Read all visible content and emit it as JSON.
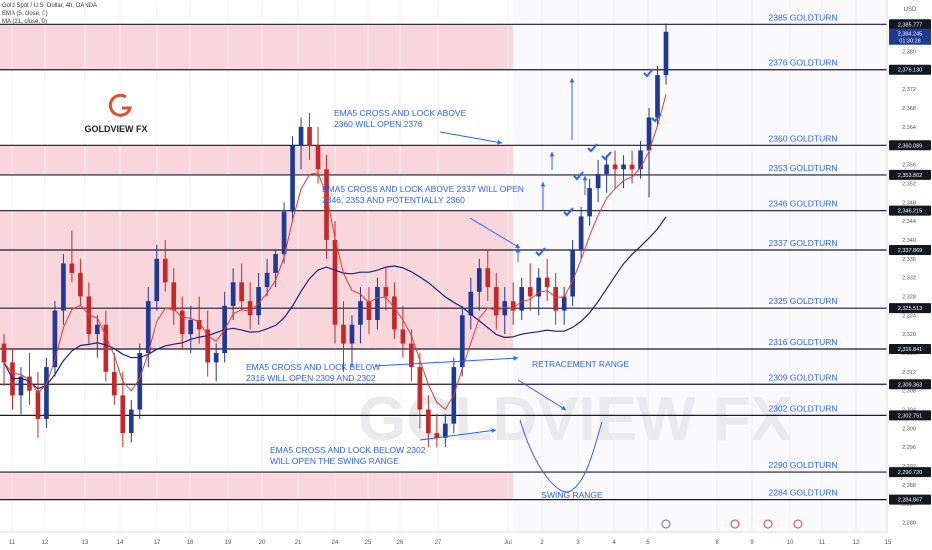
{
  "header": {
    "symbol": "Gold Spot / U.S. Dollar, 4h, OANDA",
    "ema_label": "EMA (5, close, 0)",
    "ma_label": "MA (21, close, 0)",
    "currency": "USD"
  },
  "logo": {
    "text": "GOLDVIEW FX",
    "watermark": "GOLDVIEW FX"
  },
  "colors": {
    "up": "#1f3a93",
    "down": "#c62828",
    "zone": "#f9d6dc",
    "ema": "#e53935",
    "ma": "#1a237e",
    "annotation": "#2962ff",
    "logo": "#e0502e",
    "guide": "#9aa5b8"
  },
  "chart_data": {
    "type": "candlestick",
    "ylim": [
      2278,
      2388
    ],
    "y_ticks": [
      2280,
      2284,
      2288,
      2292,
      2296,
      2300,
      2304,
      2308,
      2312,
      2316,
      2320,
      2324,
      2328,
      2332,
      2336,
      2340,
      2344,
      2348,
      2352,
      2356,
      2360,
      2364,
      2368,
      2372,
      2376,
      2380
    ],
    "x_ticks": [
      "11",
      "12",
      "13",
      "14",
      "17",
      "18",
      "19",
      "20",
      "21",
      "24",
      "25",
      "26",
      "27",
      "Jul",
      "2",
      "3",
      "4",
      "5",
      "8",
      "9",
      "10",
      "11",
      "12",
      "15",
      "16"
    ],
    "price_badges": {
      "last": "2,385.777",
      "current": "2,384.245",
      "countdown": "01:30:28"
    },
    "levels": [
      {
        "label": "2385 GOLDTURN",
        "tag": "2,385.777",
        "value": 2385.777
      },
      {
        "label": "2376 GOLDTURN",
        "tag": "2,376.130",
        "value": 2376.13
      },
      {
        "label": "2360 GOLDTURN",
        "tag": "2,360.089",
        "value": 2360.089
      },
      {
        "label": "2353 GOLDTURN",
        "tag": "2,353.802",
        "value": 2353.802
      },
      {
        "label": "2346 GOLDTURN",
        "tag": "2,346.215",
        "value": 2346.215
      },
      {
        "label": "2337 GOLDTURN",
        "tag": "2,337.869",
        "value": 2337.869
      },
      {
        "label": "2325 GOLDTURN",
        "tag": "2,325.513",
        "value": 2325.513
      },
      {
        "label": "2316 GOLDTURN",
        "tag": "2,316.841",
        "value": 2316.841
      },
      {
        "label": "2309 GOLDTURN",
        "tag": "2,309.363",
        "value": 2309.363
      },
      {
        "label": "2302 GOLDTURN",
        "tag": "2,302.751",
        "value": 2302.751
      },
      {
        "label": "2290 GOLDTURN",
        "tag": "2,290.720",
        "value": 2290.72
      },
      {
        "label": "2284 GOLDTURN",
        "tag": "2,284.867",
        "value": 2284.867
      }
    ],
    "zones": [
      [
        2376.13,
        2385.777
      ],
      [
        2353.802,
        2360.089
      ],
      [
        2316.841,
        2346.215
      ],
      [
        2284.867,
        2290.72
      ]
    ],
    "annotations": [
      {
        "lines": [
          "EMA5 CROSS AND LOCK ABOVE",
          "2360 WILL OPEN 2376"
        ]
      },
      {
        "lines": [
          "EMA5 CROSS AND LOCK ABOVE 2337 WILL OPEN",
          "2346, 2353 AND POTENTIALLY 2360"
        ]
      },
      {
        "lines": [
          "EMA5 CROSS AND LOCK BELOW",
          "2316 WILL OPEN 2309 AND 2302"
        ]
      },
      {
        "lines": [
          "EMA5 CROSS AND LOCK BELOW 2302",
          "WILL OPEN THE SWING RANGE"
        ]
      },
      {
        "lines": [
          "RETRACEMENT RANGE"
        ]
      },
      {
        "lines": [
          "SWING RANGE"
        ]
      }
    ],
    "candles": [
      [
        2318,
        2320,
        2309,
        2314
      ],
      [
        2314,
        2317,
        2304,
        2307
      ],
      [
        2307,
        2313,
        2303,
        2311
      ],
      [
        2311,
        2316,
        2305,
        2308
      ],
      [
        2308,
        2312,
        2298,
        2302
      ],
      [
        2302,
        2315,
        2300,
        2313
      ],
      [
        2313,
        2327,
        2311,
        2325
      ],
      [
        2325,
        2337,
        2322,
        2335
      ],
      [
        2335,
        2342,
        2331,
        2333
      ],
      [
        2333,
        2336,
        2326,
        2328
      ],
      [
        2328,
        2331,
        2318,
        2320
      ],
      [
        2320,
        2324,
        2315,
        2322
      ],
      [
        2322,
        2325,
        2310,
        2312
      ],
      [
        2312,
        2316,
        2305,
        2307
      ],
      [
        2307,
        2312,
        2296,
        2299
      ],
      [
        2299,
        2306,
        2297,
        2304
      ],
      [
        2304,
        2318,
        2302,
        2316
      ],
      [
        2316,
        2330,
        2313,
        2327
      ],
      [
        2327,
        2339,
        2325,
        2336
      ],
      [
        2336,
        2340,
        2329,
        2331
      ],
      [
        2331,
        2334,
        2322,
        2325
      ],
      [
        2325,
        2328,
        2317,
        2320
      ],
      [
        2320,
        2326,
        2316,
        2323
      ],
      [
        2323,
        2328,
        2318,
        2321
      ],
      [
        2321,
        2325,
        2311,
        2314
      ],
      [
        2314,
        2318,
        2310,
        2316
      ],
      [
        2316,
        2329,
        2314,
        2326
      ],
      [
        2326,
        2334,
        2323,
        2331
      ],
      [
        2331,
        2335,
        2325,
        2327
      ],
      [
        2327,
        2331,
        2321,
        2324
      ],
      [
        2324,
        2333,
        2322,
        2330
      ],
      [
        2330,
        2336,
        2328,
        2333
      ],
      [
        2333,
        2338,
        2330,
        2337
      ],
      [
        2337,
        2348,
        2335,
        2346
      ],
      [
        2346,
        2362,
        2344,
        2360
      ],
      [
        2360,
        2366,
        2355,
        2364
      ],
      [
        2364,
        2367,
        2357,
        2360
      ],
      [
        2360,
        2364,
        2352,
        2355
      ],
      [
        2355,
        2358,
        2336,
        2340
      ],
      [
        2340,
        2344,
        2318,
        2322
      ],
      [
        2322,
        2327,
        2312,
        2318
      ],
      [
        2318,
        2324,
        2313,
        2322
      ],
      [
        2322,
        2330,
        2318,
        2327
      ],
      [
        2327,
        2330,
        2320,
        2323
      ],
      [
        2323,
        2332,
        2321,
        2330
      ],
      [
        2330,
        2334,
        2325,
        2328
      ],
      [
        2328,
        2331,
        2319,
        2321
      ],
      [
        2321,
        2326,
        2315,
        2318
      ],
      [
        2318,
        2321,
        2310,
        2313
      ],
      [
        2313,
        2316,
        2300,
        2304
      ],
      [
        2304,
        2307,
        2296,
        2299
      ],
      [
        2299,
        2303,
        2296,
        2298
      ],
      [
        2298,
        2303,
        2296,
        2301
      ],
      [
        2301,
        2315,
        2299,
        2313
      ],
      [
        2313,
        2326,
        2311,
        2324
      ],
      [
        2324,
        2332,
        2321,
        2329
      ],
      [
        2329,
        2336,
        2325,
        2334
      ],
      [
        2334,
        2338,
        2327,
        2330
      ],
      [
        2330,
        2333,
        2321,
        2324
      ],
      [
        2324,
        2330,
        2320,
        2327
      ],
      [
        2327,
        2331,
        2322,
        2325
      ],
      [
        2325,
        2332,
        2323,
        2330
      ],
      [
        2330,
        2335,
        2325,
        2328
      ],
      [
        2328,
        2334,
        2324,
        2332
      ],
      [
        2332,
        2336,
        2327,
        2330
      ],
      [
        2330,
        2333,
        2322,
        2325
      ],
      [
        2325,
        2330,
        2322,
        2328
      ],
      [
        2328,
        2340,
        2326,
        2338
      ],
      [
        2338,
        2347,
        2336,
        2345
      ],
      [
        2345,
        2353,
        2343,
        2351
      ],
      [
        2351,
        2357,
        2348,
        2354
      ],
      [
        2354,
        2358,
        2350,
        2356
      ],
      [
        2356,
        2359,
        2351,
        2355
      ],
      [
        2355,
        2358,
        2351,
        2356
      ],
      [
        2356,
        2359,
        2352,
        2355
      ],
      [
        2355,
        2361,
        2353,
        2359
      ],
      [
        2359,
        2368,
        2349,
        2366
      ],
      [
        2366,
        2377,
        2364,
        2375
      ],
      [
        2375,
        2386,
        2373,
        2384.2
      ]
    ]
  }
}
